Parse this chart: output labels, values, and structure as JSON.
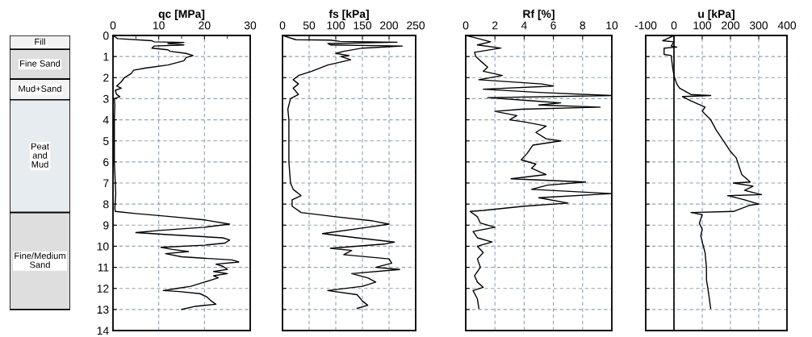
{
  "chart_data": [
    {
      "type": "bar",
      "stacked": true,
      "categories": [
        null
      ],
      "ylim": [
        14,
        0
      ],
      "tick_labels": false,
      "series": [
        {
          "name": "Fill",
          "color": "#f2f2f2",
          "values": [
            0.66
          ]
        },
        {
          "name": "Fine Sand",
          "color": "#dedede",
          "values": [
            1.41
          ]
        },
        {
          "name": "Mud+Sand",
          "color": "#f2f2f2",
          "values": [
            0.98
          ]
        },
        {
          "name": "Peat\nand\nMud",
          "color": "#e6ecef",
          "values": [
            5.35
          ]
        },
        {
          "name": "Fine/Medium\nSand",
          "color": "#dedede",
          "values": [
            4.6
          ]
        }
      ]
    },
    {
      "type": "line",
      "xlabel": "qc [MPa]",
      "xlim": [
        0,
        30
      ],
      "xticks": [
        0,
        {
          "value": 5,
          "label": null
        },
        10,
        {
          "value": 15,
          "label": null
        },
        20,
        {
          "value": 25,
          "label": null
        },
        30
      ],
      "ylim": [
        14,
        0
      ],
      "yticks": [
        0,
        1,
        2,
        3,
        4,
        5,
        6,
        7,
        8,
        9,
        10,
        11,
        12,
        13,
        14
      ],
      "grid": true,
      "series": [
        {
          "color": "#000000",
          "x": [
            0,
            1,
            8.5,
            9,
            15.5,
            12,
            15.5,
            9,
            8.5,
            12,
            12.5,
            16,
            17.5,
            16,
            15.5,
            12,
            7,
            4.5,
            4,
            2.5,
            1.8,
            0.8,
            1.8,
            0.5,
            0.8,
            1.5,
            0.3,
            0.4,
            0.3,
            0.3,
            0.3,
            0.5,
            0.6,
            0.4,
            0.5,
            5,
            13,
            20,
            25.5,
            20,
            10,
            5,
            12,
            24,
            25.5,
            24.5,
            20,
            10.5,
            13,
            16.5,
            11.5,
            15,
            26,
            27.5,
            22.5,
            24,
            25,
            22,
            25,
            22,
            23,
            20,
            17,
            14,
            11,
            14.5,
            19,
            20.5,
            21.5,
            22.5,
            18,
            15
          ],
          "values": [
            0,
            0.15,
            0.25,
            0.3,
            0.33,
            0.38,
            0.45,
            0.5,
            0.6,
            0.68,
            0.75,
            0.85,
            0.95,
            1.05,
            1.2,
            1.4,
            1.55,
            1.65,
            1.8,
            2.0,
            2.2,
            2.4,
            2.5,
            2.6,
            2.8,
            2.9,
            3.0,
            3.3,
            4,
            5,
            6,
            7,
            7.5,
            8.2,
            8.35,
            8.45,
            8.6,
            8.75,
            8.95,
            9.1,
            9.25,
            9.35,
            9.45,
            9.6,
            9.7,
            9.85,
            9.95,
            10.05,
            10.15,
            10.25,
            10.35,
            10.5,
            10.65,
            10.75,
            10.85,
            10.95,
            11.1,
            11.2,
            11.3,
            11.4,
            11.5,
            11.7,
            11.9,
            12.0,
            12.1,
            12.15,
            12.25,
            12.4,
            12.6,
            12.75,
            12.85,
            13.0
          ]
        }
      ]
    },
    {
      "type": "line",
      "xlabel": "fs [kPa]",
      "xlim": [
        0,
        250
      ],
      "xticks": [
        0,
        50,
        100,
        150,
        200,
        250
      ],
      "ylim": [
        14,
        0
      ],
      "yticks": [
        0,
        1,
        2,
        3,
        4,
        5,
        6,
        7,
        8,
        9,
        10,
        11,
        12,
        13,
        14
      ],
      "tick_labels": "x",
      "grid": true,
      "series": [
        {
          "color": "#000000",
          "x": [
            0,
            25,
            90,
            108,
            215,
            85,
            90,
            225,
            150,
            115,
            100,
            125,
            110,
            128,
            85,
            55,
            30,
            20,
            30,
            20,
            30,
            15,
            10,
            12,
            12,
            12,
            15,
            20,
            35,
            18,
            18,
            35,
            100,
            170,
            200,
            160,
            75,
            140,
            210,
            190,
            90,
            130,
            115,
            200,
            205,
            175,
            220,
            130,
            160,
            175,
            150,
            85,
            140,
            150,
            160,
            140
          ],
          "values": [
            0,
            0.2,
            0.22,
            0.28,
            0.32,
            0.38,
            0.45,
            0.5,
            0.6,
            0.75,
            0.85,
            0.95,
            1.0,
            1.15,
            1.4,
            1.7,
            1.9,
            2.1,
            2.3,
            2.5,
            2.8,
            3.0,
            3.5,
            4,
            5,
            6,
            7,
            7.3,
            7.6,
            7.8,
            8.1,
            8.4,
            8.6,
            8.8,
            8.95,
            9.1,
            9.4,
            9.6,
            9.8,
            9.9,
            10.1,
            10.2,
            10.4,
            10.6,
            10.8,
            11.0,
            11.1,
            11.3,
            11.5,
            11.7,
            11.9,
            12.1,
            12.3,
            12.6,
            12.8,
            12.95
          ]
        }
      ]
    },
    {
      "type": "line",
      "xlabel": "Rf [%]",
      "xlim": [
        0,
        10
      ],
      "xticks": [
        0,
        2,
        4,
        6,
        8,
        10
      ],
      "ylim": [
        14,
        0
      ],
      "yticks": [
        0,
        1,
        2,
        3,
        4,
        5,
        6,
        7,
        8,
        9,
        10,
        11,
        12,
        13,
        14
      ],
      "tick_labels": "x",
      "grid": true,
      "series": [
        {
          "color": "#000000",
          "x": [
            0,
            0.6,
            1.7,
            0.8,
            2.4,
            0.6,
            0.7,
            1.0,
            1.5,
            1.2,
            2.5,
            0.9,
            5.2,
            6,
            1.2,
            5,
            10,
            1.5,
            4.5,
            6.5,
            5,
            9.2,
            3.8,
            2,
            3.5,
            3,
            4,
            5.5,
            4.8,
            5.5,
            6.5,
            4.6,
            4.2,
            3.8,
            4.8,
            4.5,
            5.5,
            3.1,
            8.2,
            5.6,
            4.5,
            10,
            5,
            7,
            4,
            1.2,
            0.3,
            0.8,
            1,
            2,
            0.5,
            0.8,
            1.8,
            0.8,
            1.2,
            0.8,
            1,
            0.6,
            0.8,
            1.2,
            0.5,
            0.8,
            0.9
          ],
          "values": [
            0,
            0.1,
            0.3,
            0.45,
            0.6,
            0.8,
            1.0,
            1.2,
            1.5,
            1.7,
            1.9,
            2.1,
            2.3,
            2.4,
            2.55,
            2.7,
            2.85,
            2.95,
            3.1,
            3.2,
            3.3,
            3.4,
            3.5,
            3.6,
            3.8,
            4.0,
            4.1,
            4.3,
            4.6,
            4.9,
            5.0,
            5.2,
            5.6,
            5.9,
            6.1,
            6.3,
            6.6,
            6.8,
            6.95,
            7.1,
            7.3,
            7.5,
            7.7,
            7.95,
            8.1,
            8.3,
            8.35,
            8.6,
            8.9,
            9.1,
            9.3,
            9.6,
            9.8,
            10.0,
            10.3,
            10.6,
            11.0,
            11.4,
            11.7,
            11.95,
            12.1,
            12.5,
            12.95
          ]
        }
      ]
    },
    {
      "type": "line",
      "xlabel": "u [kPa]",
      "xlim": [
        -100,
        400
      ],
      "xticks": [
        {
          "value": -100,
          "label": "-100"
        },
        0,
        100,
        200,
        300,
        400
      ],
      "ylim": [
        14,
        0
      ],
      "yticks": [
        0,
        1,
        2,
        3,
        4,
        5,
        6,
        7,
        8,
        9,
        10,
        11,
        12,
        13,
        14
      ],
      "tick_labels": "x",
      "grid": true,
      "ref_lines": [
        {
          "axis": "x",
          "value": 0,
          "color": "#000000",
          "line_style": "solid"
        }
      ],
      "series": [
        {
          "color": "#000000",
          "x": [
            0,
            -40,
            0,
            -10,
            10,
            -35,
            -35,
            -10,
            -5,
            0,
            10,
            20,
            60,
            130,
            30,
            60,
            110,
            100,
            130,
            150,
            175,
            200,
            220,
            230,
            240,
            270,
            210,
            280,
            250,
            310,
            190,
            250,
            300,
            270,
            210,
            60,
            100,
            90,
            100,
            95,
            100,
            110,
            115,
            115,
            120,
            130
          ],
          "values": [
            0,
            0.25,
            0.3,
            0.5,
            0.55,
            0.6,
            0.9,
            0.95,
            1.5,
            1.9,
            2.3,
            2.5,
            2.8,
            2.85,
            2.9,
            3.1,
            3.4,
            3.6,
            4.0,
            4.5,
            5.0,
            5.5,
            5.8,
            6.2,
            6.6,
            6.95,
            7.0,
            7.15,
            7.35,
            7.55,
            7.6,
            7.8,
            8.0,
            8.05,
            8.35,
            8.4,
            8.5,
            8.9,
            9.2,
            9.5,
            9.8,
            10.3,
            11,
            11.6,
            12,
            12.95
          ]
        }
      ]
    }
  ]
}
